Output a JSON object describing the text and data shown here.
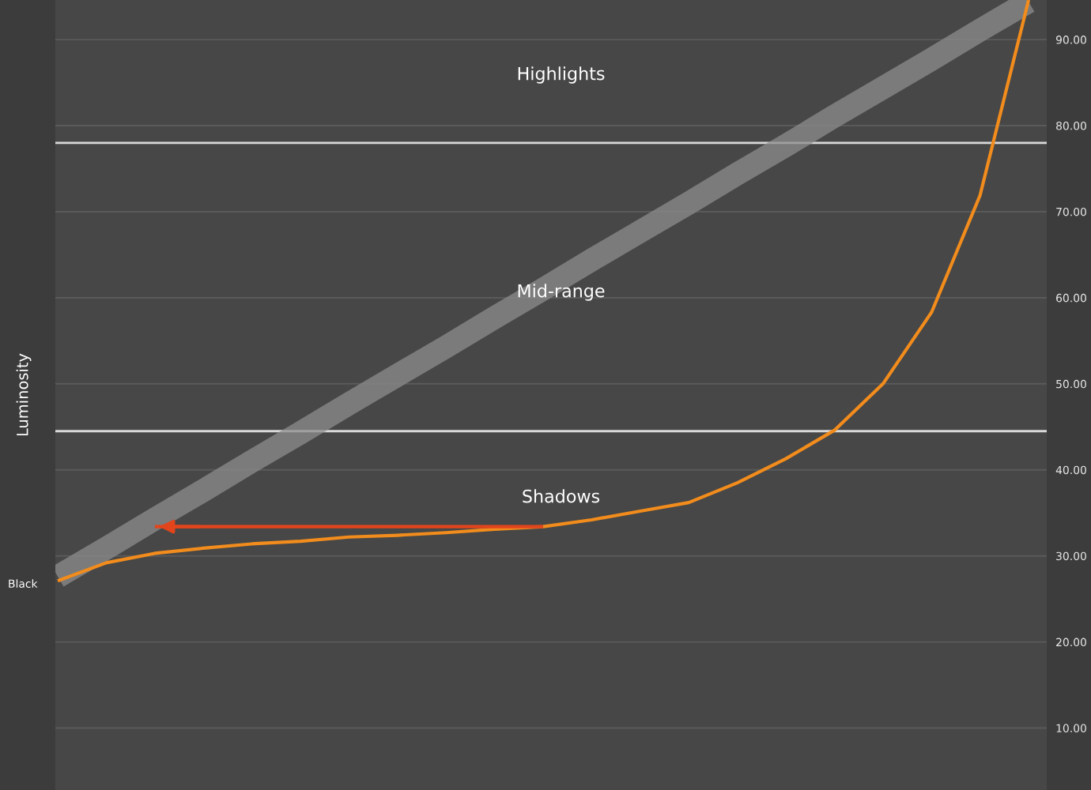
{
  "chart_data": {
    "type": "line",
    "ylabel": "Luminosity",
    "categories": [
      null,
      null,
      null,
      null,
      null,
      null,
      null,
      null,
      null,
      null,
      null,
      null,
      null,
      null,
      null,
      null,
      null,
      null,
      null,
      null,
      null
    ],
    "ylim": [
      2.8,
      94.6
    ],
    "yticks": [
      {
        "value": 10,
        "label": "10.00"
      },
      {
        "value": 20,
        "label": "20.00"
      },
      {
        "value": 30,
        "label": "30.00"
      },
      {
        "value": 40,
        "label": "40.00"
      },
      {
        "value": 50,
        "label": "50.00"
      },
      {
        "value": 60,
        "label": "60.00"
      },
      {
        "value": 70,
        "label": "70.00"
      },
      {
        "value": 80,
        "label": "80.00"
      },
      {
        "value": 90,
        "label": "90.00"
      }
    ],
    "grid": "y",
    "series": [
      {
        "color": "#8c8c8c",
        "values": [
          27.6,
          30.9,
          34.3,
          37.6,
          41.0,
          44.3,
          47.7,
          51.0,
          54.3,
          57.7,
          61.0,
          64.4,
          67.7,
          71.0,
          74.4,
          77.7,
          81.1,
          84.4,
          87.7,
          91.1,
          94.4
        ]
      },
      {
        "color": "#f28c1c",
        "values": [
          27.1,
          29.2,
          30.3,
          30.9,
          31.4,
          31.7,
          32.2,
          32.4,
          32.7,
          33.1,
          33.4,
          34.2,
          35.2,
          36.2,
          38.5,
          41.3,
          44.6,
          50.0,
          58.3,
          71.9,
          94.6
        ]
      },
      {
        "color": "#e2451c",
        "values": [
          null,
          null,
          33.4,
          33.4,
          33.4,
          33.4,
          33.4,
          33.4,
          33.4,
          33.4,
          33.4,
          null,
          null,
          null,
          null,
          null,
          null,
          null,
          null,
          null,
          null
        ]
      }
    ],
    "ref_lines": [
      {
        "axis": "y",
        "value": 78,
        "color": "#d9d9d9"
      },
      {
        "axis": "y",
        "value": 44.5,
        "color": "#d9d9d9"
      }
    ],
    "annotations": [
      "Highlights",
      "Mid-range",
      "Shadows",
      "Black"
    ]
  }
}
